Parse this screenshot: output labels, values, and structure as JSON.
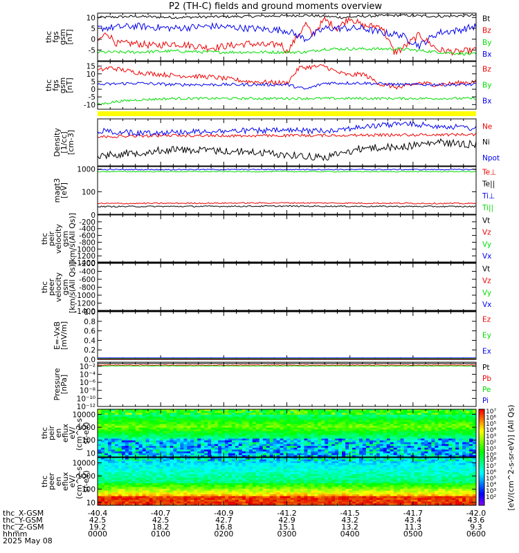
{
  "title": "P2 (TH-C) fields and ground moments overview",
  "colors": {
    "black": "#000000",
    "red": "#ee0000",
    "green": "#00dd00",
    "blue": "#0000ee",
    "yellow": "#ffff00"
  },
  "chart_data": [
    {
      "type": "line",
      "panel": "fgs-gsm",
      "ylabel_lines": [
        "thc",
        "fgs",
        "gsm",
        "[nT]"
      ],
      "ylim": [
        -10,
        12
      ],
      "yticks": [
        {
          "v": 10,
          "t": "10"
        },
        {
          "v": 5,
          "t": "5"
        },
        {
          "v": 0,
          "t": "0"
        },
        {
          "v": -5,
          "t": "-5"
        }
      ],
      "legend": [
        {
          "name": "Bt",
          "color": "black"
        },
        {
          "name": "Bz",
          "color": "red"
        },
        {
          "name": "By",
          "color": "green"
        },
        {
          "name": "Bx",
          "color": "blue"
        }
      ],
      "series": [
        {
          "name": "Bt",
          "color": "black",
          "x": [
            0,
            60,
            120,
            180,
            240,
            300,
            330,
            360,
            390,
            420,
            450,
            480,
            540,
            600
          ],
          "y": [
            10,
            10.5,
            10,
            10.3,
            10.5,
            10.8,
            11,
            10.5,
            10,
            10.5,
            10.8,
            11,
            10.5,
            11
          ],
          "noise": 0.6
        },
        {
          "name": "Bz",
          "color": "red",
          "x": [
            0,
            15,
            30,
            60,
            90,
            120,
            150,
            180,
            210,
            240,
            270,
            290,
            300,
            330,
            340,
            360,
            380,
            400,
            420,
            450,
            470,
            480,
            510,
            540,
            570,
            600
          ],
          "y": [
            -1,
            3,
            -2,
            -2,
            -3,
            -2,
            -3,
            -4,
            -3,
            -2,
            -3,
            -2,
            -6,
            7,
            2,
            9,
            5,
            10,
            6,
            6,
            -6,
            -5,
            2,
            -5,
            -6,
            -5
          ],
          "noise": 1.6
        },
        {
          "name": "By",
          "color": "green",
          "x": [
            0,
            60,
            120,
            180,
            240,
            300,
            330,
            360,
            420,
            480,
            540,
            600
          ],
          "y": [
            -6,
            -6,
            -5.5,
            -6,
            -6,
            -6,
            -6,
            -4.5,
            -4.5,
            -4.5,
            -6,
            -7
          ],
          "noise": 0.7
        },
        {
          "name": "Bx",
          "color": "blue",
          "x": [
            0,
            60,
            120,
            180,
            240,
            300,
            330,
            360,
            420,
            450,
            480,
            510,
            540,
            570,
            600
          ],
          "y": [
            5,
            6,
            5,
            6,
            5,
            4,
            0,
            5,
            5,
            3,
            2,
            -3,
            3,
            4,
            6
          ],
          "noise": 1.6
        }
      ]
    },
    {
      "type": "line",
      "panel": "fgs-dsl",
      "ylabel_lines": [
        "thc",
        "fgs",
        "gsm",
        "[nT]"
      ],
      "ylim": [
        -13,
        18
      ],
      "yticks": [
        {
          "v": 15,
          "t": "15"
        },
        {
          "v": 10,
          "t": "10"
        },
        {
          "v": 5,
          "t": "5"
        },
        {
          "v": 0,
          "t": "0"
        },
        {
          "v": -5,
          "t": "-5"
        },
        {
          "v": -10,
          "t": "-10"
        }
      ],
      "legend": [
        {
          "name": "Bz",
          "color": "red"
        },
        {
          "name": "By",
          "color": "green"
        },
        {
          "name": "Bx",
          "color": "blue"
        }
      ],
      "series": [
        {
          "name": "Bz",
          "color": "red",
          "x": [
            0,
            20,
            60,
            120,
            180,
            240,
            300,
            320,
            360,
            380,
            400,
            420,
            450,
            480,
            510,
            540,
            570,
            600
          ],
          "y": [
            12,
            14,
            11,
            9,
            8,
            5,
            4,
            14,
            15,
            11,
            9,
            10,
            3,
            1,
            4,
            3,
            4,
            5
          ],
          "noise": 1.5
        },
        {
          "name": "By",
          "color": "green",
          "x": [
            0,
            30,
            60,
            120,
            180,
            240,
            300,
            360,
            420,
            480,
            540,
            600
          ],
          "y": [
            -10,
            -8,
            -7,
            -6,
            -6,
            -6,
            -6,
            -6,
            -6,
            -6,
            -6,
            -6
          ],
          "noise": 0.8
        },
        {
          "name": "Bx",
          "color": "blue",
          "x": [
            0,
            60,
            120,
            180,
            240,
            300,
            330,
            360,
            420,
            480,
            540,
            600
          ],
          "y": [
            3,
            4,
            3,
            3,
            3,
            3,
            0,
            4,
            4,
            3,
            3,
            3
          ],
          "noise": 1.0
        }
      ]
    },
    {
      "type": "line",
      "panel": "density",
      "ylabel_lines": [
        "Density",
        "[1/cc]",
        "[cm-3]"
      ],
      "legend": [
        {
          "name": "Ne",
          "color": "red"
        },
        {
          "name": "Ni",
          "color": "black"
        },
        {
          "name": "Npot",
          "color": "blue"
        }
      ],
      "series": [
        {
          "name": "Ne",
          "color": "red",
          "x": [
            0,
            120,
            240,
            360,
            480,
            600
          ],
          "y": [
            0.38,
            0.35,
            0.36,
            0.35,
            0.34,
            0.33
          ],
          "noise": 0.03
        },
        {
          "name": "Ni",
          "color": "black",
          "x": [
            0,
            60,
            120,
            240,
            300,
            360,
            420,
            480,
            540,
            600
          ],
          "y": [
            0.78,
            0.72,
            0.65,
            0.7,
            0.76,
            0.82,
            0.62,
            0.6,
            0.5,
            0.55
          ],
          "noise": 0.08
        },
        {
          "name": "Npot",
          "color": "blue",
          "x": [
            0,
            60,
            120,
            240,
            360,
            480,
            600
          ],
          "y": [
            0.25,
            0.3,
            0.28,
            0.25,
            0.25,
            0.1,
            0.2
          ],
          "noise": 0.06
        }
      ]
    },
    {
      "type": "line",
      "panel": "temperature",
      "ylabel_lines": [
        "magt3",
        "[eV]"
      ],
      "yscale": "log",
      "ylim": [
        10,
        1300
      ],
      "yticks": [
        {
          "v": 1000,
          "t": "1000"
        },
        {
          "v": 100,
          "t": "100"
        }
      ],
      "legend": [
        {
          "name": "Te⊥",
          "color": "red"
        },
        {
          "name": "Te||",
          "color": "black"
        },
        {
          "name": "Ti⊥",
          "color": "blue"
        },
        {
          "name": "Ti||",
          "color": "green"
        }
      ],
      "series": [
        {
          "name": "Ti⊥",
          "color": "blue",
          "x": [
            0,
            600
          ],
          "y": [
            960,
            960
          ],
          "noise": 50
        },
        {
          "name": "Ti||",
          "color": "green",
          "x": [
            0,
            600
          ],
          "y": [
            780,
            780
          ],
          "noise": 40
        },
        {
          "name": "Te⊥",
          "color": "red",
          "x": [
            0,
            300,
            600
          ],
          "y": [
            30,
            32,
            30
          ],
          "noise": 2
        },
        {
          "name": "Te||",
          "color": "black",
          "x": [
            0,
            300,
            600
          ],
          "y": [
            22,
            23,
            22
          ],
          "noise": 1.5
        }
      ]
    },
    {
      "type": "line",
      "panel": "peir-velocity",
      "ylabel_lines": [
        "thc",
        "peir",
        "velocity",
        "gsm",
        "[km/s(All Qs)]"
      ],
      "ylim": [
        -1400,
        0
      ],
      "yticks": [
        {
          "v": 0,
          "t": "0"
        },
        {
          "v": -200,
          "t": "-200"
        },
        {
          "v": -400,
          "t": "-400"
        },
        {
          "v": -600,
          "t": "-600"
        },
        {
          "v": -800,
          "t": "-800"
        },
        {
          "v": -1000,
          "t": "-1000"
        },
        {
          "v": -1200,
          "t": "-1200"
        },
        {
          "v": -1400,
          "t": "-1400"
        }
      ],
      "legend": [
        {
          "name": "Vt",
          "color": "black"
        },
        {
          "name": "Vz",
          "color": "red"
        },
        {
          "name": "Vy",
          "color": "green"
        },
        {
          "name": "Vx",
          "color": "blue"
        }
      ]
    },
    {
      "type": "line",
      "panel": "peer-velocity",
      "ylabel_lines": [
        "thc",
        "peer",
        "velocity",
        "gsm",
        "[km/s(All Qs)]"
      ],
      "ylim": [
        -1400,
        -200
      ],
      "yticks": [
        {
          "v": -200,
          "t": "-200"
        },
        {
          "v": -400,
          "t": "-400"
        },
        {
          "v": -600,
          "t": "-600"
        },
        {
          "v": -800,
          "t": "-800"
        },
        {
          "v": -1000,
          "t": "-1000"
        },
        {
          "v": -1200,
          "t": "-1200"
        },
        {
          "v": -1400,
          "t": "-1400"
        }
      ],
      "legend": [
        {
          "name": "Vt",
          "color": "black"
        },
        {
          "name": "Vz",
          "color": "red"
        },
        {
          "name": "Vy",
          "color": "green"
        },
        {
          "name": "Vx",
          "color": "blue"
        }
      ]
    },
    {
      "type": "line",
      "panel": "efield",
      "ylabel_lines": [
        "E=-VxB",
        "[mV/m]"
      ],
      "ylim": [
        0,
        1.0
      ],
      "yticks": [
        {
          "v": 1.0,
          "t": "1.0"
        },
        {
          "v": 0.8,
          "t": "0.8"
        },
        {
          "v": 0.6,
          "t": "0.6"
        },
        {
          "v": 0.4,
          "t": "0.4"
        },
        {
          "v": 0.2,
          "t": "0.2"
        },
        {
          "v": 0.0,
          "t": "0.0"
        }
      ],
      "legend": [
        {
          "name": "Ez",
          "color": "red"
        },
        {
          "name": "Ey",
          "color": "green"
        },
        {
          "name": "Ex",
          "color": "blue"
        }
      ]
    },
    {
      "type": "line",
      "panel": "pressure",
      "ylabel_lines": [
        "Pressure",
        "[nPa]"
      ],
      "yscale": "log",
      "ylim": [
        1e-12,
        0.1
      ],
      "yticks": [
        {
          "v": 0.01,
          "t": "10⁻²"
        },
        {
          "v": 0.0001,
          "t": "10⁻⁴"
        },
        {
          "v": 1e-06,
          "t": "10⁻⁶"
        },
        {
          "v": 1e-08,
          "t": "10⁻⁸"
        },
        {
          "v": 1e-10,
          "t": "10⁻¹⁰"
        },
        {
          "v": 1e-12,
          "t": "10⁻¹²"
        }
      ],
      "legend": [
        {
          "name": "Pt",
          "color": "black"
        },
        {
          "name": "Pb",
          "color": "red"
        },
        {
          "name": "Pe",
          "color": "green"
        },
        {
          "name": "Pi",
          "color": "blue"
        }
      ],
      "series": [
        {
          "name": "Pt",
          "color": "black",
          "x": [
            0,
            600
          ],
          "y": [
            0.05,
            0.05
          ],
          "noise": 0
        },
        {
          "name": "Pb",
          "color": "red",
          "x": [
            0,
            600
          ],
          "y": [
            0.02,
            0.02
          ],
          "noise": 0.004
        },
        {
          "name": "Pe",
          "color": "green",
          "x": [
            0,
            600
          ],
          "y": [
            0.012,
            0.012
          ],
          "noise": 0.002
        }
      ]
    },
    {
      "type": "heatmap",
      "panel": "peir-en-eflux",
      "ylabel_lines": [
        "thc",
        "peir",
        "en",
        "eflux",
        "eV/",
        "(cm^2-s-",
        "sr-eV)"
      ],
      "yscale": "log",
      "ylim": [
        5,
        25000
      ],
      "yticks": [
        {
          "v": 10000,
          "t": "10000"
        },
        {
          "v": 1000,
          "t": "1000"
        },
        {
          "v": 100,
          "t": "100"
        },
        {
          "v": 10,
          "t": "10"
        }
      ]
    },
    {
      "type": "heatmap",
      "panel": "peer-en-eflux",
      "ylabel_lines": [
        "thc",
        "peer",
        "en",
        "eflux",
        "eV/",
        "(cm^2-s-",
        "sr-eV)"
      ],
      "yscale": "log",
      "ylim": [
        6,
        25000
      ],
      "yticks": [
        {
          "v": 10000,
          "t": "10000"
        },
        {
          "v": 1000,
          "t": "1000"
        },
        {
          "v": 100,
          "t": "100"
        },
        {
          "v": 10,
          "t": "10"
        }
      ]
    }
  ],
  "colorbar": {
    "label": "[eV/(cm^2-s-sr-eV)] (All Qs)",
    "ticks_top": [
      "10⁷",
      "10⁶",
      "10⁵",
      "10⁴",
      "10³",
      "10²",
      "10¹",
      "10⁰"
    ],
    "ticks_bottom": [
      "10⁸",
      "10⁷",
      "10⁶",
      "10⁵",
      "10⁴",
      "10³",
      "10²"
    ]
  },
  "footer": {
    "row_labels": [
      "thc_X-GSM",
      "thc_Y-GSM",
      "thc_Z-GSM",
      "hhmm",
      "2025 May 08"
    ],
    "columns": [
      [
        "-40.4",
        "42.5",
        "19.2",
        "0000"
      ],
      [
        "-40.7",
        "42.5",
        "18.2",
        "0100"
      ],
      [
        "-40.9",
        "42.7",
        "16.8",
        "0200"
      ],
      [
        "-41.2",
        "42.9",
        "15.1",
        "0300"
      ],
      [
        "-41.5",
        "43.2",
        "13.2",
        "0400"
      ],
      [
        "-41.7",
        "43.4",
        "11.3",
        "0500"
      ],
      [
        "-42.0",
        "43.6",
        "9.3",
        "0600"
      ]
    ]
  }
}
